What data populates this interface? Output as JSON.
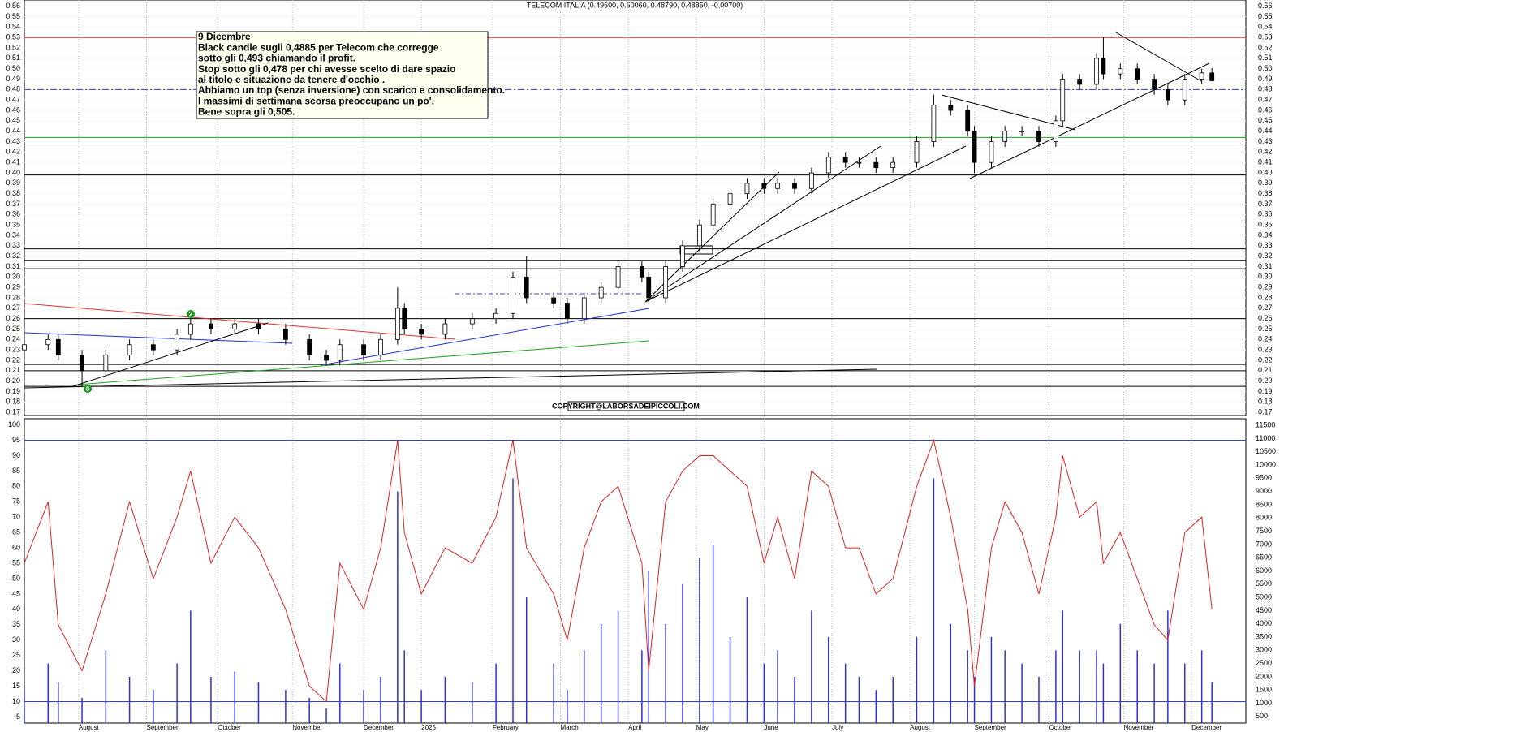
{
  "chart_data": {
    "type": "candlestick",
    "title": "TELECOM ITALIA (0.49600, 0.50060, 0.48790, 0.48850, -0.00700)",
    "annotation": [
      "9 Dicembre",
      "Black candle sugli 0,4885 per Telecom che corregge",
      "sotto gli 0,493 chiamando il profit.",
      "Stop sotto gli 0,478 per chi avesse scelto di dare spazio",
      "al titolo e situazione da tenere d'occhio .",
      "Abbiamo un top (senza inversione) con scarico e consolidamento.",
      "I massimi di settimana scorsa preoccupano un po'.",
      "Bene sopra gli 0,505."
    ],
    "copyright": "COPYRIGHT@LABORSADEIPICCOLI.COM",
    "markers": [
      "0",
      "2"
    ],
    "x": [
      0,
      7,
      10,
      17,
      24,
      31,
      38,
      45,
      49,
      55,
      62,
      69,
      77,
      84,
      89,
      93,
      100,
      105,
      110,
      112,
      117,
      124,
      132,
      139,
      144,
      148,
      156,
      160,
      165,
      170,
      175,
      182,
      184,
      189,
      194,
      199,
      203,
      208,
      213,
      218,
      222,
      227,
      232,
      237,
      242,
      246,
      251,
      256,
      263,
      268,
      273,
      278,
      280,
      285,
      289,
      294,
      299,
      304,
      306,
      311,
      316,
      318,
      323,
      328,
      333,
      337,
      342,
      347,
      350
    ],
    "open": [
      0.23,
      0.235,
      0.24,
      0.225,
      0.21,
      0.225,
      0.235,
      0.23,
      0.245,
      0.255,
      0.25,
      0.255,
      0.25,
      0.24,
      0.225,
      0.22,
      0.235,
      0.225,
      0.24,
      0.27,
      0.25,
      0.245,
      0.255,
      0.26,
      0.265,
      0.3,
      0.28,
      0.275,
      0.26,
      0.28,
      0.29,
      0.31,
      0.3,
      0.28,
      0.31,
      0.33,
      0.35,
      0.37,
      0.38,
      0.39,
      0.385,
      0.39,
      0.385,
      0.4,
      0.415,
      0.41,
      0.41,
      0.405,
      0.41,
      0.43,
      0.465,
      0.46,
      0.44,
      0.41,
      0.43,
      0.44,
      0.44,
      0.43,
      0.45,
      0.49,
      0.485,
      0.51,
      0.495,
      0.5,
      0.49,
      0.48,
      0.47,
      0.49,
      0.496
    ],
    "high": [
      0.24,
      0.245,
      0.245,
      0.23,
      0.23,
      0.24,
      0.24,
      0.25,
      0.26,
      0.26,
      0.26,
      0.26,
      0.255,
      0.245,
      0.23,
      0.24,
      0.24,
      0.245,
      0.29,
      0.275,
      0.255,
      0.26,
      0.265,
      0.27,
      0.305,
      0.32,
      0.285,
      0.28,
      0.285,
      0.295,
      0.315,
      0.315,
      0.305,
      0.315,
      0.335,
      0.355,
      0.375,
      0.385,
      0.395,
      0.395,
      0.395,
      0.395,
      0.405,
      0.42,
      0.42,
      0.415,
      0.415,
      0.415,
      0.435,
      0.475,
      0.47,
      0.465,
      0.445,
      0.435,
      0.445,
      0.445,
      0.445,
      0.455,
      0.495,
      0.495,
      0.515,
      0.53,
      0.505,
      0.505,
      0.495,
      0.485,
      0.495,
      0.5,
      0.5006
    ],
    "low": [
      0.225,
      0.23,
      0.22,
      0.195,
      0.205,
      0.22,
      0.225,
      0.225,
      0.24,
      0.245,
      0.245,
      0.245,
      0.235,
      0.22,
      0.215,
      0.215,
      0.22,
      0.22,
      0.235,
      0.245,
      0.24,
      0.24,
      0.25,
      0.255,
      0.26,
      0.275,
      0.27,
      0.255,
      0.255,
      0.275,
      0.285,
      0.295,
      0.275,
      0.275,
      0.305,
      0.325,
      0.345,
      0.365,
      0.375,
      0.38,
      0.38,
      0.38,
      0.38,
      0.395,
      0.405,
      0.405,
      0.4,
      0.4,
      0.405,
      0.425,
      0.455,
      0.435,
      0.4,
      0.405,
      0.425,
      0.435,
      0.425,
      0.425,
      0.445,
      0.48,
      0.48,
      0.49,
      0.49,
      0.485,
      0.475,
      0.465,
      0.465,
      0.485,
      0.4879
    ],
    "close": [
      0.235,
      0.24,
      0.225,
      0.21,
      0.225,
      0.235,
      0.23,
      0.245,
      0.255,
      0.25,
      0.255,
      0.25,
      0.24,
      0.225,
      0.22,
      0.235,
      0.225,
      0.24,
      0.27,
      0.25,
      0.245,
      0.255,
      0.26,
      0.265,
      0.3,
      0.28,
      0.275,
      0.26,
      0.28,
      0.29,
      0.31,
      0.3,
      0.28,
      0.31,
      0.33,
      0.35,
      0.37,
      0.38,
      0.39,
      0.385,
      0.39,
      0.385,
      0.4,
      0.415,
      0.41,
      0.41,
      0.405,
      0.41,
      0.43,
      0.465,
      0.46,
      0.44,
      0.41,
      0.43,
      0.44,
      0.44,
      0.43,
      0.45,
      0.49,
      0.485,
      0.51,
      0.495,
      0.5,
      0.49,
      0.48,
      0.47,
      0.49,
      0.496,
      0.4885
    ],
    "oscillator": {
      "color": "#e02020",
      "values": [
        55,
        75,
        35,
        20,
        45,
        75,
        50,
        70,
        85,
        55,
        70,
        60,
        40,
        15,
        10,
        55,
        40,
        60,
        95,
        65,
        45,
        60,
        55,
        70,
        95,
        60,
        45,
        30,
        60,
        75,
        80,
        55,
        20,
        75,
        85,
        90,
        90,
        85,
        80,
        55,
        70,
        50,
        85,
        80,
        60,
        60,
        45,
        50,
        80,
        95,
        70,
        40,
        15,
        60,
        75,
        65,
        45,
        70,
        90,
        70,
        75,
        55,
        65,
        50,
        35,
        30,
        65,
        70,
        40
      ]
    },
    "volume": {
      "color": "#3030d0",
      "axis": "y2",
      "values": [
        1500,
        2500,
        1800,
        1200,
        3000,
        2000,
        1500,
        2500,
        4500,
        2000,
        2200,
        1800,
        1500,
        1200,
        800,
        2500,
        1500,
        2000,
        9000,
        3000,
        1500,
        2000,
        1800,
        2500,
        9500,
        5000,
        2500,
        1500,
        3000,
        4000,
        4500,
        3000,
        6000,
        4000,
        5500,
        6500,
        7000,
        3500,
        5000,
        2500,
        3000,
        2000,
        4500,
        3500,
        2500,
        2000,
        1500,
        2000,
        3500,
        9500,
        4000,
        3000,
        2000,
        3500,
        3000,
        2500,
        2000,
        3000,
        4500,
        3000,
        3000,
        2500,
        4000,
        3000,
        2500,
        4500,
        2500,
        3000,
        1800
      ]
    },
    "levels": [
      {
        "value": 0.53,
        "color": "#e03030"
      },
      {
        "value": 0.48,
        "color": "#3040d0",
        "dash": true
      },
      {
        "value": 0.434,
        "color": "#20a020"
      },
      {
        "value": 0.423,
        "color": "#000"
      },
      {
        "value": 0.398,
        "color": "#000"
      },
      {
        "value": 0.327,
        "color": "#000"
      },
      {
        "value": 0.316,
        "color": "#000"
      },
      {
        "value": 0.308,
        "color": "#000"
      },
      {
        "value": 0.26,
        "color": "#000"
      },
      {
        "value": 0.216,
        "color": "#000"
      },
      {
        "value": 0.21,
        "color": "#000"
      },
      {
        "value": 0.195,
        "color": "#000"
      }
    ],
    "lower_levels": [
      95,
      10
    ],
    "xlim": [
      0,
      360
    ],
    "xticks": [
      {
        "value": 16,
        "label": "August"
      },
      {
        "value": 36,
        "label": "September"
      },
      {
        "value": 57,
        "label": "October"
      },
      {
        "value": 79,
        "label": "November"
      },
      {
        "value": 100,
        "label": "December"
      },
      {
        "value": 117,
        "label": "2025"
      },
      {
        "value": 138,
        "label": "February"
      },
      {
        "value": 158,
        "label": "March"
      },
      {
        "value": 178,
        "label": "April"
      },
      {
        "value": 198,
        "label": "May"
      },
      {
        "value": 218,
        "label": "June"
      },
      {
        "value": 238,
        "label": "July"
      },
      {
        "value": 261,
        "label": "August"
      },
      {
        "value": 280,
        "label": "September"
      },
      {
        "value": 302,
        "label": "October"
      },
      {
        "value": 324,
        "label": "November"
      },
      {
        "value": 344,
        "label": "December"
      }
    ],
    "ylim": [
      0.167,
      0.566
    ],
    "yticks": [
      0.17,
      0.18,
      0.19,
      {
        "value": 0.2,
        "label": "0.20"
      },
      0.21,
      0.22,
      0.23,
      0.24,
      0.25,
      0.26,
      0.27,
      0.28,
      0.29,
      {
        "value": 0.3,
        "label": "0.30"
      },
      0.31,
      0.32,
      0.33,
      0.34,
      0.35,
      0.36,
      0.37,
      0.38,
      0.39,
      {
        "value": 0.4,
        "label": "0.40"
      },
      0.41,
      0.42,
      0.43,
      0.44,
      0.45,
      0.46,
      0.47,
      0.48,
      0.49,
      {
        "value": 0.5,
        "label": "0.50"
      },
      0.51,
      0.52,
      0.53,
      0.54,
      0.55,
      0.56
    ],
    "lower_ylim": [
      3,
      102
    ],
    "lower_yticks": [
      5,
      10,
      15,
      20,
      25,
      30,
      35,
      40,
      45,
      50,
      55,
      60,
      65,
      70,
      75,
      80,
      85,
      90,
      95,
      100
    ],
    "y2lim": [
      250,
      11750
    ],
    "y2ticks": [
      500,
      1000,
      1500,
      2000,
      2500,
      3000,
      3500,
      4000,
      4500,
      5000,
      5500,
      6000,
      6500,
      7000,
      7500,
      8000,
      8500,
      9000,
      9500,
      10000,
      10500,
      11000,
      11500
    ]
  }
}
